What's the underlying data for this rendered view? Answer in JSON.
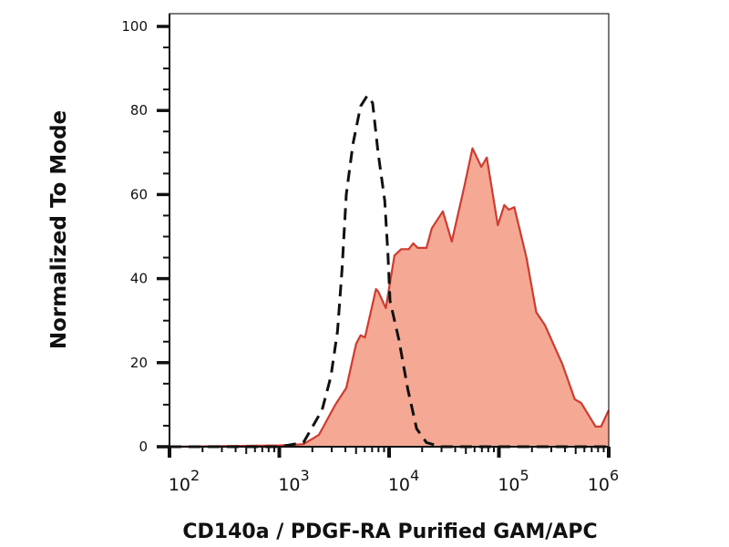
{
  "chart_data": {
    "type": "area",
    "title": "",
    "xlabel": "CD140a / PDGF-RA Purified GAM/APC",
    "ylabel": "Normalized To Mode",
    "xscale": "log",
    "xlim": [
      100,
      1000000
    ],
    "ylim": [
      0,
      100
    ],
    "grid": false,
    "x_ticks": [
      {
        "base": "10",
        "exp": "2",
        "value": 100
      },
      {
        "base": "10",
        "exp": "3",
        "value": 1000
      },
      {
        "base": "10",
        "exp": "4",
        "value": 10000
      },
      {
        "base": "10",
        "exp": "5",
        "value": 100000
      },
      {
        "base": "10",
        "exp": "6",
        "value": 1000000
      }
    ],
    "y_ticks": [
      "0",
      "20",
      "40",
      "60",
      "80",
      "100"
    ],
    "y_tick_values": [
      0,
      20,
      40,
      60,
      80,
      100
    ],
    "series": [
      {
        "style": "filled",
        "fill": "#F5A893",
        "stroke": "#D13B2F",
        "x": [
          100,
          1000,
          1400,
          1660,
          2290,
          3240,
          4070,
          5010,
          5500,
          6030,
          7590,
          7940,
          9330,
          11200,
          12900,
          15100,
          16600,
          18200,
          21900,
          24500,
          30900,
          37200,
          47900,
          57500,
          69200,
          77600,
          97700,
          112000,
          123000,
          138000,
          178000,
          219000,
          263000,
          380000,
          490000,
          562000,
          759000,
          851000,
          1000000
        ],
        "y": [
          0,
          0.3,
          0.5,
          0.6,
          2.8,
          10,
          14,
          24.5,
          26.5,
          26,
          37.5,
          37,
          33,
          45.5,
          47,
          47,
          48.4,
          47.3,
          47.3,
          52,
          56,
          48.8,
          61.4,
          71,
          66.6,
          68.8,
          52.7,
          57.5,
          56.4,
          57,
          45,
          32,
          28.9,
          19.5,
          11.3,
          10.4,
          4.8,
          4.8,
          8.7
        ]
      },
      {
        "style": "dashed",
        "stroke": "#111111",
        "x": [
          100,
          1000,
          1660,
          2450,
          2950,
          3390,
          3720,
          4070,
          4680,
          5500,
          6310,
          7080,
          7940,
          9120,
          9770,
          10200,
          12300,
          14800,
          17800,
          21900,
          29500,
          1000000
        ],
        "y": [
          0,
          0,
          1,
          8.7,
          16.7,
          27.5,
          42,
          60,
          72,
          81,
          83.5,
          81.8,
          70,
          58.6,
          45.5,
          34.7,
          25.4,
          13.7,
          4.3,
          1,
          0,
          0
        ]
      }
    ]
  }
}
